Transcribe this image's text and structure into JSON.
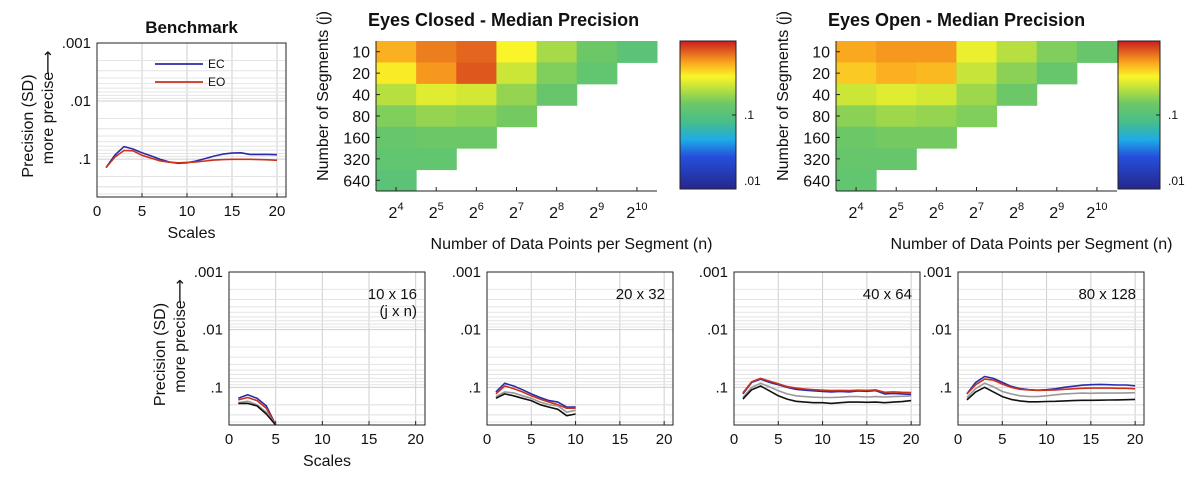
{
  "chart_data": [
    {
      "id": "benchmark",
      "type": "line",
      "title": "Benchmark",
      "xlabel": "Scales",
      "ylabel_line1": "Precision (SD)",
      "ylabel_line2": "more precise",
      "y_scale": "log",
      "y_reversed": true,
      "ylim": [
        0.45,
        0.001
      ],
      "xlim": [
        0,
        21
      ],
      "xticks": [
        0,
        5,
        10,
        15,
        20
      ],
      "yticks": [
        0.001,
        0.01,
        0.1
      ],
      "ytick_labels": [
        ".001",
        ".01",
        ".1"
      ],
      "grid": true,
      "legend_position": "top-right",
      "x": [
        1,
        2,
        3,
        4,
        5,
        6,
        7,
        8,
        9,
        10,
        11,
        12,
        13,
        14,
        15,
        16,
        17,
        18,
        19,
        20
      ],
      "series": [
        {
          "name": "EC",
          "color": "#2b2ba8",
          "values": [
            0.14,
            0.085,
            0.061,
            0.067,
            0.078,
            0.088,
            0.101,
            0.112,
            0.118,
            0.116,
            0.108,
            0.098,
            0.089,
            0.082,
            0.079,
            0.078,
            0.083,
            0.083,
            0.083,
            0.084
          ]
        },
        {
          "name": "EO",
          "color": "#c8321e",
          "values": [
            0.14,
            0.092,
            0.071,
            0.072,
            0.086,
            0.096,
            0.107,
            0.113,
            0.116,
            0.114,
            0.112,
            0.108,
            0.104,
            0.102,
            0.101,
            0.101,
            0.101,
            0.102,
            0.103,
            0.105
          ]
        }
      ]
    },
    {
      "id": "heatmap-ec",
      "type": "heatmap",
      "title": "Eyes Closed - Median Precision",
      "title_color": "#2b2b9a",
      "xlabel": "Number of Data Points per Segment (n)",
      "ylabel": "Number of Segments (j)",
      "x_categories": [
        "2^4",
        "2^5",
        "2^6",
        "2^7",
        "2^8",
        "2^9",
        "2^10"
      ],
      "y_categories": [
        "10",
        "20",
        "40",
        "80",
        "160",
        "320",
        "640"
      ],
      "color_scale": "log",
      "clim": [
        0.01,
        1
      ],
      "colorbar_ticks": [
        ".1",
        ".01"
      ],
      "values": [
        [
          0.48,
          0.62,
          0.7,
          0.33,
          0.2,
          0.14,
          0.11
        ],
        [
          0.35,
          0.55,
          0.75,
          0.25,
          0.16,
          0.12,
          null
        ],
        [
          0.22,
          0.28,
          0.26,
          0.18,
          0.13,
          null,
          null
        ],
        [
          0.16,
          0.18,
          0.17,
          0.15,
          null,
          null,
          null
        ],
        [
          0.13,
          0.14,
          0.14,
          null,
          null,
          null,
          null
        ],
        [
          0.12,
          0.12,
          null,
          null,
          null,
          null,
          null
        ],
        [
          0.11,
          null,
          null,
          null,
          null,
          null,
          null
        ]
      ]
    },
    {
      "id": "heatmap-eo",
      "type": "heatmap",
      "title": "Eyes Open - Median Precision",
      "title_color": "#c4321c",
      "xlabel": "Number of Data Points per Segment (n)",
      "ylabel": "Number of Segments (j)",
      "x_categories": [
        "2^4",
        "2^5",
        "2^6",
        "2^7",
        "2^8",
        "2^9",
        "2^10"
      ],
      "y_categories": [
        "10",
        "20",
        "40",
        "80",
        "160",
        "320",
        "640"
      ],
      "color_scale": "log",
      "clim": [
        0.01,
        1
      ],
      "colorbar_ticks": [
        ".1",
        ".01"
      ],
      "values": [
        [
          0.5,
          0.55,
          0.55,
          0.3,
          0.22,
          0.16,
          0.13
        ],
        [
          0.42,
          0.48,
          0.46,
          0.24,
          0.17,
          0.13,
          null
        ],
        [
          0.25,
          0.28,
          0.26,
          0.19,
          0.14,
          null,
          null
        ],
        [
          0.17,
          0.19,
          0.18,
          0.16,
          null,
          null,
          null
        ],
        [
          0.14,
          0.15,
          0.15,
          null,
          null,
          null,
          null
        ],
        [
          0.13,
          0.13,
          null,
          null,
          null,
          null,
          null
        ],
        [
          0.12,
          null,
          null,
          null,
          null,
          null,
          null
        ]
      ]
    },
    {
      "id": "small-10x16",
      "type": "line",
      "annotation": [
        "10 x 16",
        "(j x n)"
      ],
      "xlabel": "Scales",
      "ylabel_line1": "Precision (SD)",
      "ylabel_line2": "more precise",
      "y_scale": "log",
      "y_reversed": true,
      "ylim": [
        0.45,
        0.001
      ],
      "xlim": [
        0,
        21
      ],
      "xticks": [
        0,
        5,
        10,
        15,
        20
      ],
      "yticks": [
        0.001,
        0.01,
        0.1
      ],
      "ytick_labels": [
        ".001",
        ".01",
        ".1"
      ],
      "grid": true,
      "x": [
        1,
        2,
        3,
        4,
        5
      ],
      "series": [
        {
          "color": "#2b2ba8",
          "values": [
            0.155,
            0.135,
            0.155,
            0.21,
            0.45
          ]
        },
        {
          "color": "#c8321e",
          "values": [
            0.165,
            0.15,
            0.17,
            0.23,
            0.45
          ]
        },
        {
          "color": "#999999",
          "values": [
            0.185,
            0.175,
            0.2,
            0.27,
            0.45
          ]
        },
        {
          "color": "#111111",
          "values": [
            0.19,
            0.19,
            0.21,
            0.29,
            0.45
          ]
        }
      ]
    },
    {
      "id": "small-20x32",
      "type": "line",
      "annotation": [
        "20 x 32"
      ],
      "xlabel": "",
      "y_scale": "log",
      "y_reversed": true,
      "ylim": [
        0.45,
        0.001
      ],
      "xlim": [
        0,
        21
      ],
      "xticks": [
        0,
        5,
        10,
        15,
        20
      ],
      "yticks": [
        0.001,
        0.01,
        0.1
      ],
      "ytick_labels": [
        ".001",
        ".01",
        ".1"
      ],
      "grid": true,
      "x": [
        1,
        2,
        3,
        4,
        5,
        6,
        7,
        8,
        9,
        10
      ],
      "series": [
        {
          "color": "#2b2ba8",
          "values": [
            0.12,
            0.085,
            0.095,
            0.11,
            0.13,
            0.15,
            0.17,
            0.18,
            0.22,
            0.22
          ]
        },
        {
          "color": "#c8321e",
          "values": [
            0.13,
            0.095,
            0.105,
            0.12,
            0.14,
            0.16,
            0.18,
            0.2,
            0.23,
            0.23
          ]
        },
        {
          "color": "#999999",
          "values": [
            0.145,
            0.12,
            0.125,
            0.14,
            0.155,
            0.18,
            0.2,
            0.21,
            0.27,
            0.25
          ]
        },
        {
          "color": "#111111",
          "values": [
            0.155,
            0.13,
            0.14,
            0.155,
            0.17,
            0.2,
            0.22,
            0.24,
            0.31,
            0.29
          ]
        }
      ]
    },
    {
      "id": "small-40x64",
      "type": "line",
      "annotation": [
        "40 x 64"
      ],
      "xlabel": "",
      "y_scale": "log",
      "y_reversed": true,
      "ylim": [
        0.45,
        0.001
      ],
      "xlim": [
        0,
        21
      ],
      "xticks": [
        0,
        5,
        10,
        15,
        20
      ],
      "yticks": [
        0.001,
        0.01,
        0.1
      ],
      "ytick_labels": [
        ".001",
        ".01",
        ".1"
      ],
      "grid": true,
      "x": [
        1,
        2,
        3,
        4,
        5,
        6,
        7,
        8,
        9,
        10,
        11,
        12,
        13,
        14,
        15,
        16,
        17,
        18,
        19,
        20
      ],
      "series": [
        {
          "color": "#2b2ba8",
          "values": [
            0.13,
            0.082,
            0.072,
            0.082,
            0.09,
            0.1,
            0.108,
            0.112,
            0.115,
            0.118,
            0.12,
            0.118,
            0.12,
            0.116,
            0.117,
            0.114,
            0.13,
            0.128,
            0.13,
            0.132
          ]
        },
        {
          "color": "#c8321e",
          "values": [
            0.125,
            0.08,
            0.07,
            0.078,
            0.087,
            0.097,
            0.103,
            0.107,
            0.11,
            0.112,
            0.114,
            0.113,
            0.114,
            0.112,
            0.113,
            0.111,
            0.122,
            0.12,
            0.122,
            0.123
          ]
        },
        {
          "color": "#999999",
          "values": [
            0.15,
            0.1,
            0.085,
            0.098,
            0.115,
            0.13,
            0.14,
            0.145,
            0.148,
            0.15,
            0.15,
            0.148,
            0.145,
            0.145,
            0.147,
            0.145,
            0.147,
            0.145,
            0.143,
            0.14
          ]
        },
        {
          "color": "#111111",
          "values": [
            0.16,
            0.11,
            0.095,
            0.115,
            0.14,
            0.16,
            0.175,
            0.18,
            0.185,
            0.185,
            0.19,
            0.185,
            0.18,
            0.18,
            0.182,
            0.18,
            0.185,
            0.18,
            0.177,
            0.17
          ]
        }
      ]
    },
    {
      "id": "small-80x128",
      "type": "line",
      "annotation": [
        "80 x 128"
      ],
      "xlabel": "",
      "y_scale": "log",
      "y_reversed": true,
      "ylim": [
        0.45,
        0.001
      ],
      "xlim": [
        0,
        21
      ],
      "xticks": [
        0,
        5,
        10,
        15,
        20
      ],
      "yticks": [
        0.001,
        0.01,
        0.1
      ],
      "ytick_labels": [
        ".001",
        ".01",
        ".1"
      ],
      "grid": true,
      "x": [
        1,
        2,
        3,
        4,
        5,
        6,
        7,
        8,
        9,
        10,
        11,
        12,
        13,
        14,
        15,
        16,
        17,
        18,
        19,
        20
      ],
      "series": [
        {
          "color": "#2b2ba8",
          "values": [
            0.13,
            0.082,
            0.065,
            0.07,
            0.082,
            0.096,
            0.105,
            0.11,
            0.112,
            0.11,
            0.106,
            0.1,
            0.096,
            0.092,
            0.09,
            0.089,
            0.09,
            0.091,
            0.091,
            0.094
          ]
        },
        {
          "color": "#c8321e",
          "values": [
            0.13,
            0.09,
            0.072,
            0.075,
            0.088,
            0.1,
            0.108,
            0.111,
            0.113,
            0.112,
            0.111,
            0.108,
            0.106,
            0.104,
            0.103,
            0.103,
            0.103,
            0.104,
            0.104,
            0.106
          ]
        },
        {
          "color": "#999999",
          "values": [
            0.15,
            0.105,
            0.085,
            0.098,
            0.118,
            0.13,
            0.14,
            0.145,
            0.145,
            0.14,
            0.135,
            0.13,
            0.128,
            0.126,
            0.127,
            0.126,
            0.126,
            0.126,
            0.125,
            0.124
          ]
        },
        {
          "color": "#111111",
          "values": [
            0.165,
            0.12,
            0.1,
            0.12,
            0.145,
            0.162,
            0.172,
            0.178,
            0.178,
            0.176,
            0.175,
            0.172,
            0.17,
            0.168,
            0.168,
            0.167,
            0.166,
            0.165,
            0.164,
            0.162
          ]
        }
      ]
    }
  ]
}
